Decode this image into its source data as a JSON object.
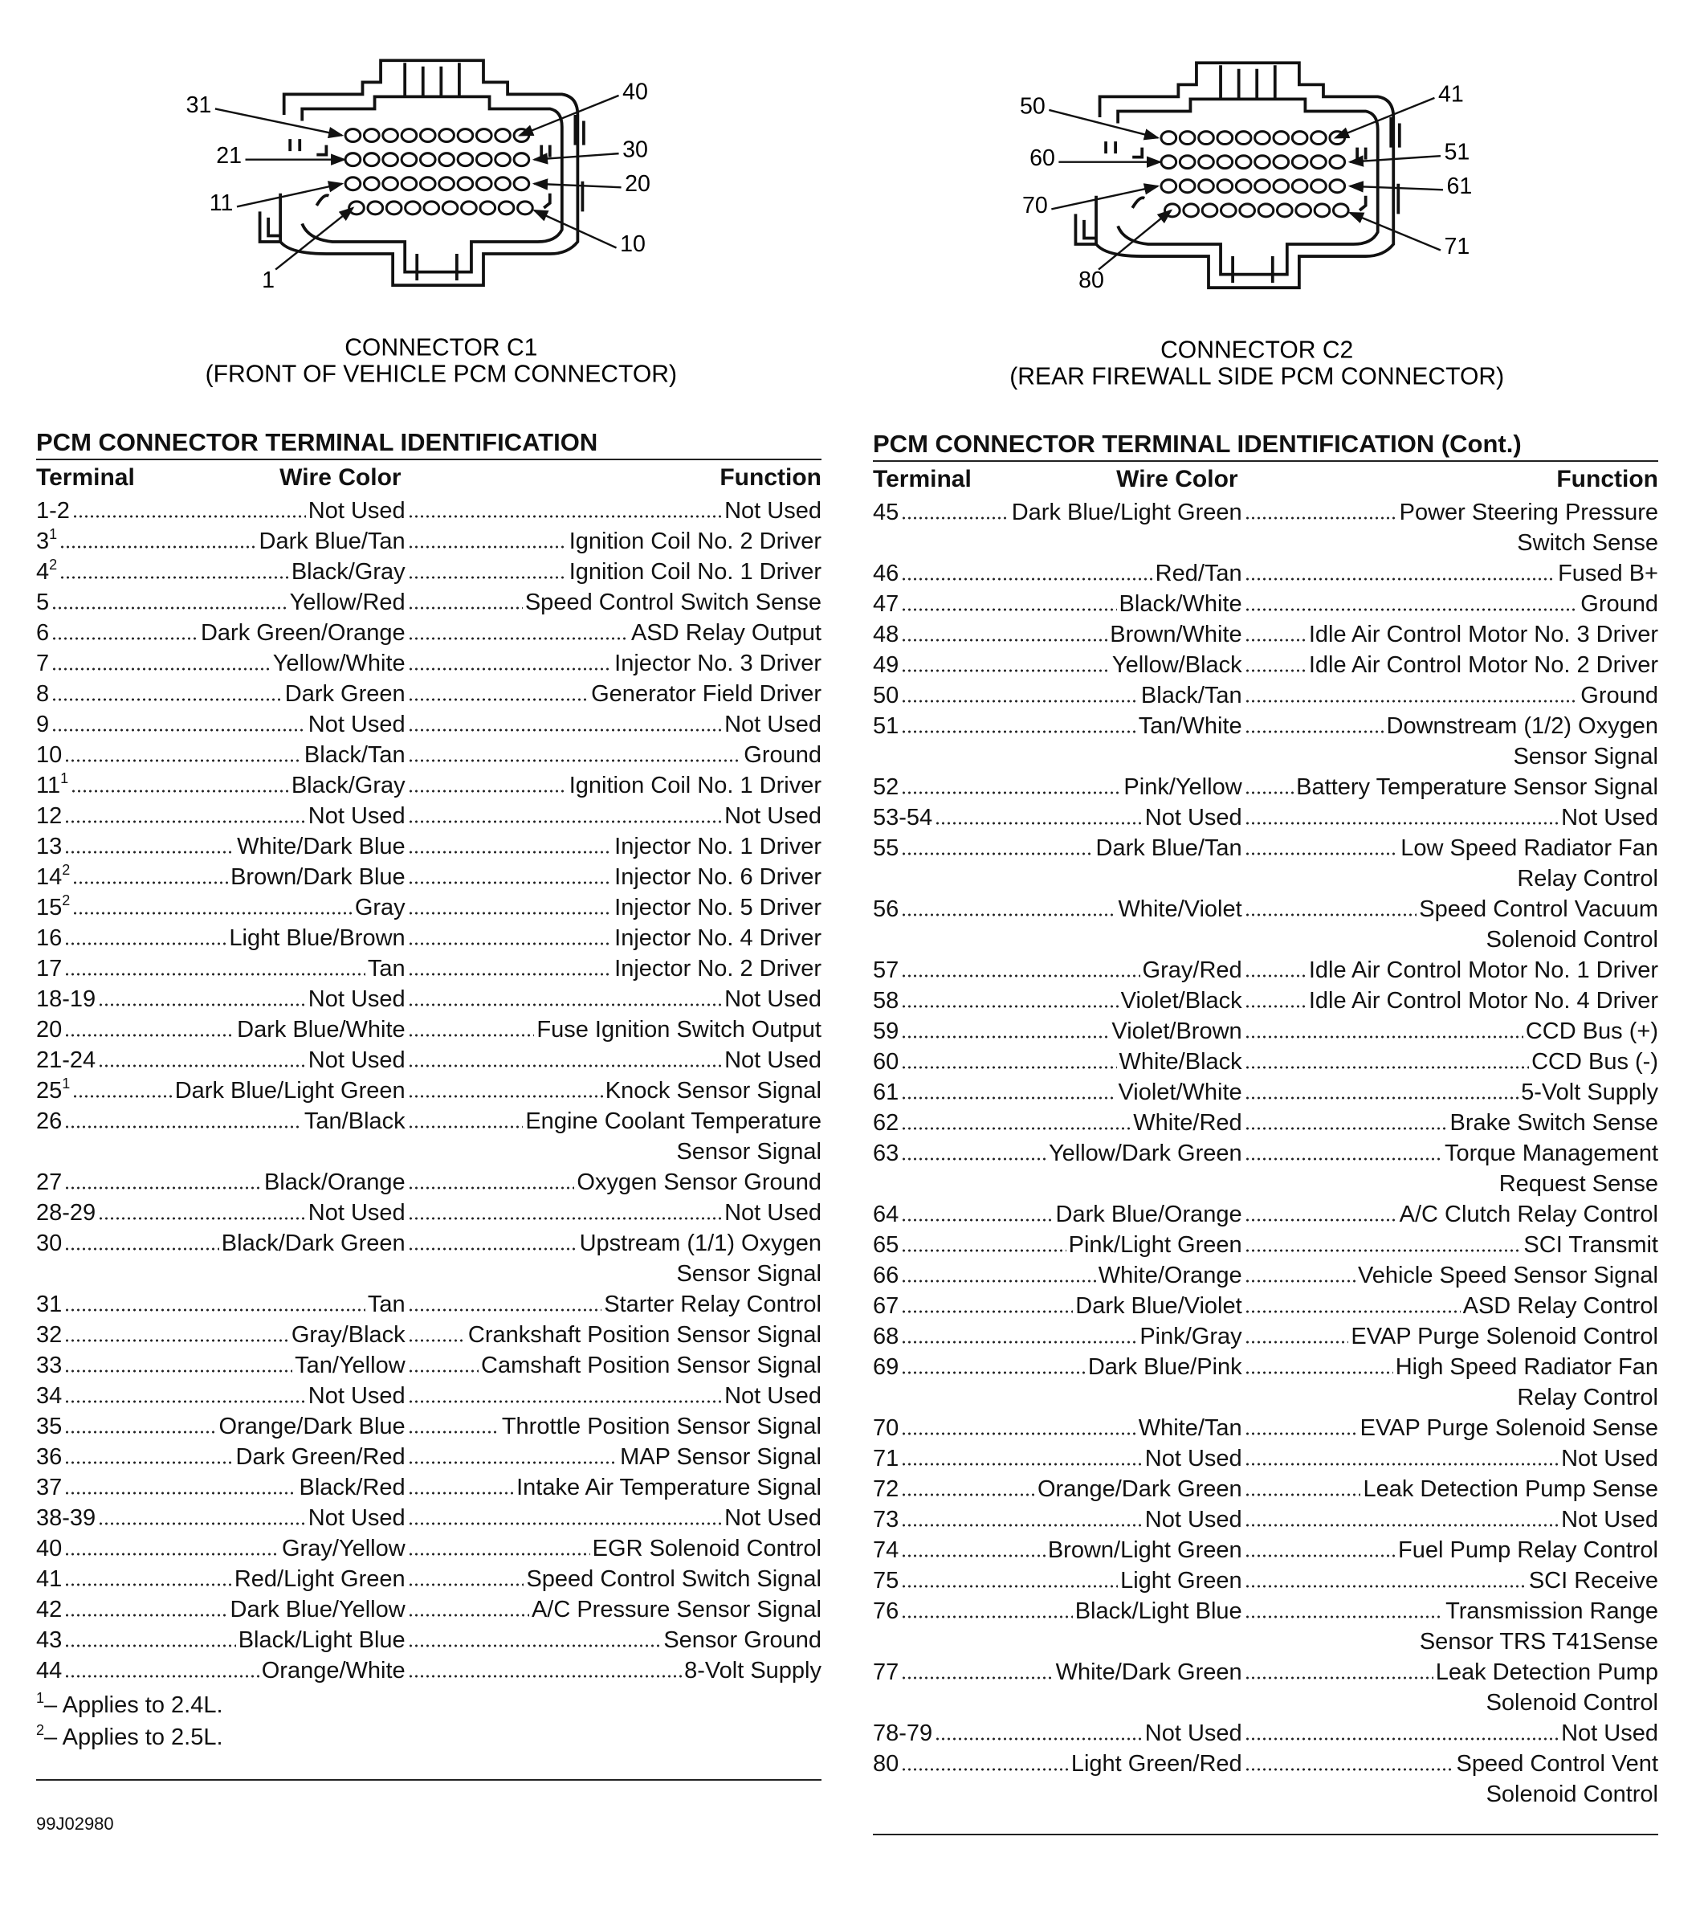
{
  "connectors": [
    {
      "pins": [
        "31",
        "40",
        "21",
        "30",
        "11",
        "20",
        "1",
        "10"
      ],
      "caption": [
        "CONNECTOR C1",
        "(FRONT OF VEHICLE PCM CONNECTOR)"
      ]
    },
    {
      "pins": [
        "50",
        "41",
        "60",
        "51",
        "70",
        "61",
        "80",
        "71"
      ],
      "caption": [
        "CONNECTOR C2",
        "(REAR FIREWALL SIDE PCM CONNECTOR)"
      ]
    }
  ],
  "tables": [
    {
      "title": "PCM CONNECTOR TERMINAL IDENTIFICATION",
      "headers": [
        "Terminal",
        "Wire Color",
        "Function"
      ],
      "rows": [
        {
          "terminal": "1-2",
          "wire": "Not Used",
          "function": [
            "Not Used"
          ]
        },
        {
          "terminal": "3",
          "note": "1",
          "wire": "Dark Blue/Tan",
          "function": [
            "Ignition Coil No. 2 Driver"
          ]
        },
        {
          "terminal": "4",
          "note": "2",
          "wire": "Black/Gray",
          "function": [
            "Ignition Coil No. 1 Driver"
          ]
        },
        {
          "terminal": "5",
          "wire": "Yellow/Red",
          "function": [
            "Speed Control Switch Sense"
          ]
        },
        {
          "terminal": "6",
          "wire": "Dark Green/Orange",
          "function": [
            "ASD Relay Output"
          ]
        },
        {
          "terminal": "7",
          "wire": "Yellow/White",
          "function": [
            "Injector No. 3 Driver"
          ]
        },
        {
          "terminal": "8",
          "wire": "Dark Green",
          "function": [
            "Generator Field Driver"
          ]
        },
        {
          "terminal": "9",
          "wire": "Not Used",
          "function": [
            "Not Used"
          ]
        },
        {
          "terminal": "10",
          "wire": "Black/Tan",
          "function": [
            "Ground"
          ]
        },
        {
          "terminal": "11",
          "note": "1",
          "wire": "Black/Gray",
          "function": [
            "Ignition Coil No. 1 Driver"
          ]
        },
        {
          "terminal": "12",
          "wire": "Not Used",
          "function": [
            "Not Used"
          ]
        },
        {
          "terminal": "13",
          "wire": "White/Dark Blue",
          "function": [
            "Injector No. 1 Driver"
          ]
        },
        {
          "terminal": "14",
          "note": "2",
          "wire": "Brown/Dark Blue",
          "function": [
            "Injector No. 6 Driver"
          ]
        },
        {
          "terminal": "15",
          "note": "2",
          "wire": "Gray",
          "function": [
            "Injector No. 5 Driver"
          ]
        },
        {
          "terminal": "16",
          "wire": "Light Blue/Brown",
          "function": [
            "Injector No. 4 Driver"
          ]
        },
        {
          "terminal": "17",
          "wire": "Tan",
          "function": [
            "Injector No. 2 Driver"
          ]
        },
        {
          "terminal": "18-19",
          "wire": "Not Used",
          "function": [
            "Not Used"
          ]
        },
        {
          "terminal": "20",
          "wire": "Dark Blue/White",
          "function": [
            "Fuse Ignition Switch Output"
          ]
        },
        {
          "terminal": "21-24",
          "wire": "Not Used",
          "function": [
            "Not Used"
          ]
        },
        {
          "terminal": "25",
          "note": "1",
          "wire": "Dark Blue/Light Green",
          "function": [
            "Knock Sensor Signal"
          ]
        },
        {
          "terminal": "26",
          "wire": "Tan/Black",
          "function": [
            "Engine Coolant Temperature",
            "Sensor Signal"
          ]
        },
        {
          "terminal": "27",
          "wire": "Black/Orange",
          "function": [
            "Oxygen Sensor Ground"
          ]
        },
        {
          "terminal": "28-29",
          "wire": "Not Used",
          "function": [
            "Not Used"
          ]
        },
        {
          "terminal": "30",
          "wire": "Black/Dark Green",
          "function": [
            "Upstream (1/1) Oxygen",
            "Sensor Signal"
          ]
        },
        {
          "terminal": "31",
          "wire": "Tan",
          "function": [
            "Starter Relay Control"
          ]
        },
        {
          "terminal": "32",
          "wire": "Gray/Black",
          "function": [
            "Crankshaft Position Sensor Signal"
          ]
        },
        {
          "terminal": "33",
          "wire": "Tan/Yellow",
          "function": [
            "Camshaft Position Sensor Signal"
          ]
        },
        {
          "terminal": "34",
          "wire": "Not Used",
          "function": [
            "Not Used"
          ]
        },
        {
          "terminal": "35",
          "wire": "Orange/Dark Blue",
          "function": [
            "Throttle Position Sensor Signal"
          ]
        },
        {
          "terminal": "36",
          "wire": "Dark Green/Red",
          "function": [
            "MAP Sensor Signal"
          ]
        },
        {
          "terminal": "37",
          "wire": "Black/Red",
          "function": [
            "Intake Air Temperature Signal"
          ]
        },
        {
          "terminal": "38-39",
          "wire": "Not Used",
          "function": [
            "Not Used"
          ]
        },
        {
          "terminal": "40",
          "wire": "Gray/Yellow",
          "function": [
            "EGR Solenoid Control"
          ]
        },
        {
          "terminal": "41",
          "wire": "Red/Light Green",
          "function": [
            "Speed Control Switch Signal"
          ]
        },
        {
          "terminal": "42",
          "wire": "Dark Blue/Yellow",
          "function": [
            "A/C Pressure Sensor Signal"
          ]
        },
        {
          "terminal": "43",
          "wire": "Black/Light Blue",
          "function": [
            "Sensor Ground"
          ]
        },
        {
          "terminal": "44",
          "wire": "Orange/White",
          "function": [
            "8-Volt Supply"
          ]
        }
      ],
      "footnotes": [
        {
          "mark": "1",
          "text": "– Applies to 2.4L."
        },
        {
          "mark": "2",
          "text": "– Applies to 2.5L."
        }
      ]
    },
    {
      "title": "PCM CONNECTOR TERMINAL IDENTIFICATION (Cont.)",
      "headers": [
        "Terminal",
        "Wire Color",
        "Function"
      ],
      "rows": [
        {
          "terminal": "45",
          "wire": "Dark Blue/Light Green",
          "function": [
            "Power Steering Pressure",
            "Switch Sense"
          ]
        },
        {
          "terminal": "46",
          "wire": "Red/Tan",
          "function": [
            "Fused B+"
          ]
        },
        {
          "terminal": "47",
          "wire": "Black/White",
          "function": [
            "Ground"
          ]
        },
        {
          "terminal": "48",
          "wire": "Brown/White",
          "function": [
            "Idle Air Control Motor No. 3 Driver"
          ]
        },
        {
          "terminal": "49",
          "wire": "Yellow/Black",
          "function": [
            "Idle Air Control Motor No. 2 Driver"
          ]
        },
        {
          "terminal": "50",
          "wire": "Black/Tan",
          "function": [
            "Ground"
          ]
        },
        {
          "terminal": "51",
          "wire": "Tan/White",
          "function": [
            "Downstream (1/2) Oxygen",
            "Sensor Signal"
          ]
        },
        {
          "terminal": "52",
          "wire": "Pink/Yellow",
          "function": [
            "Battery Temperature Sensor Signal"
          ]
        },
        {
          "terminal": "53-54",
          "wire": "Not Used",
          "function": [
            "Not Used"
          ]
        },
        {
          "terminal": "55",
          "wire": "Dark Blue/Tan",
          "function": [
            "Low Speed Radiator Fan",
            "Relay Control"
          ]
        },
        {
          "terminal": "56",
          "wire": "White/Violet",
          "function": [
            "Speed Control Vacuum",
            "Solenoid Control"
          ]
        },
        {
          "terminal": "57",
          "wire": "Gray/Red",
          "function": [
            "Idle Air Control Motor No. 1 Driver"
          ]
        },
        {
          "terminal": "58",
          "wire": "Violet/Black",
          "function": [
            "Idle Air Control Motor No. 4 Driver"
          ]
        },
        {
          "terminal": "59",
          "wire": "Violet/Brown",
          "function": [
            "CCD Bus (+)"
          ]
        },
        {
          "terminal": "60",
          "wire": "White/Black",
          "function": [
            "CCD Bus (-)"
          ]
        },
        {
          "terminal": "61",
          "wire": "Violet/White",
          "function": [
            "5-Volt Supply"
          ]
        },
        {
          "terminal": "62",
          "wire": "White/Red",
          "function": [
            "Brake Switch Sense"
          ]
        },
        {
          "terminal": "63",
          "wire": "Yellow/Dark Green",
          "function": [
            "Torque Management",
            "Request Sense"
          ]
        },
        {
          "terminal": "64",
          "wire": "Dark Blue/Orange",
          "function": [
            "A/C Clutch Relay Control"
          ]
        },
        {
          "terminal": "65",
          "wire": "Pink/Light Green",
          "function": [
            "SCI Transmit"
          ]
        },
        {
          "terminal": "66",
          "wire": "White/Orange",
          "function": [
            "Vehicle Speed Sensor Signal"
          ]
        },
        {
          "terminal": "67",
          "wire": "Dark Blue/Violet",
          "function": [
            "ASD Relay Control"
          ]
        },
        {
          "terminal": "68",
          "wire": "Pink/Gray",
          "function": [
            "EVAP Purge Solenoid Control"
          ]
        },
        {
          "terminal": "69",
          "wire": "Dark Blue/Pink",
          "function": [
            "High Speed Radiator Fan",
            "Relay Control"
          ]
        },
        {
          "terminal": "70",
          "wire": "White/Tan",
          "function": [
            "EVAP Purge Solenoid Sense"
          ]
        },
        {
          "terminal": "71",
          "wire": "Not Used",
          "function": [
            "Not Used"
          ]
        },
        {
          "terminal": "72",
          "wire": "Orange/Dark Green",
          "function": [
            "Leak Detection Pump Sense"
          ]
        },
        {
          "terminal": "73",
          "wire": "Not Used",
          "function": [
            "Not Used"
          ]
        },
        {
          "terminal": "74",
          "wire": "Brown/Light Green",
          "function": [
            "Fuel Pump Relay Control"
          ]
        },
        {
          "terminal": "75",
          "wire": "Light Green",
          "function": [
            "SCI Receive"
          ]
        },
        {
          "terminal": "76",
          "wire": "Black/Light Blue",
          "function": [
            "Transmission Range",
            "Sensor TRS T41Sense"
          ]
        },
        {
          "terminal": "77",
          "wire": "White/Dark Green",
          "function": [
            "Leak Detection Pump",
            "Solenoid Control"
          ]
        },
        {
          "terminal": "78-79",
          "wire": "Not Used",
          "function": [
            "Not Used"
          ]
        },
        {
          "terminal": "80",
          "wire": "Light Green/Red",
          "function": [
            "Speed Control Vent",
            "Solenoid Control"
          ]
        }
      ]
    }
  ],
  "figure_code": "99J02980"
}
